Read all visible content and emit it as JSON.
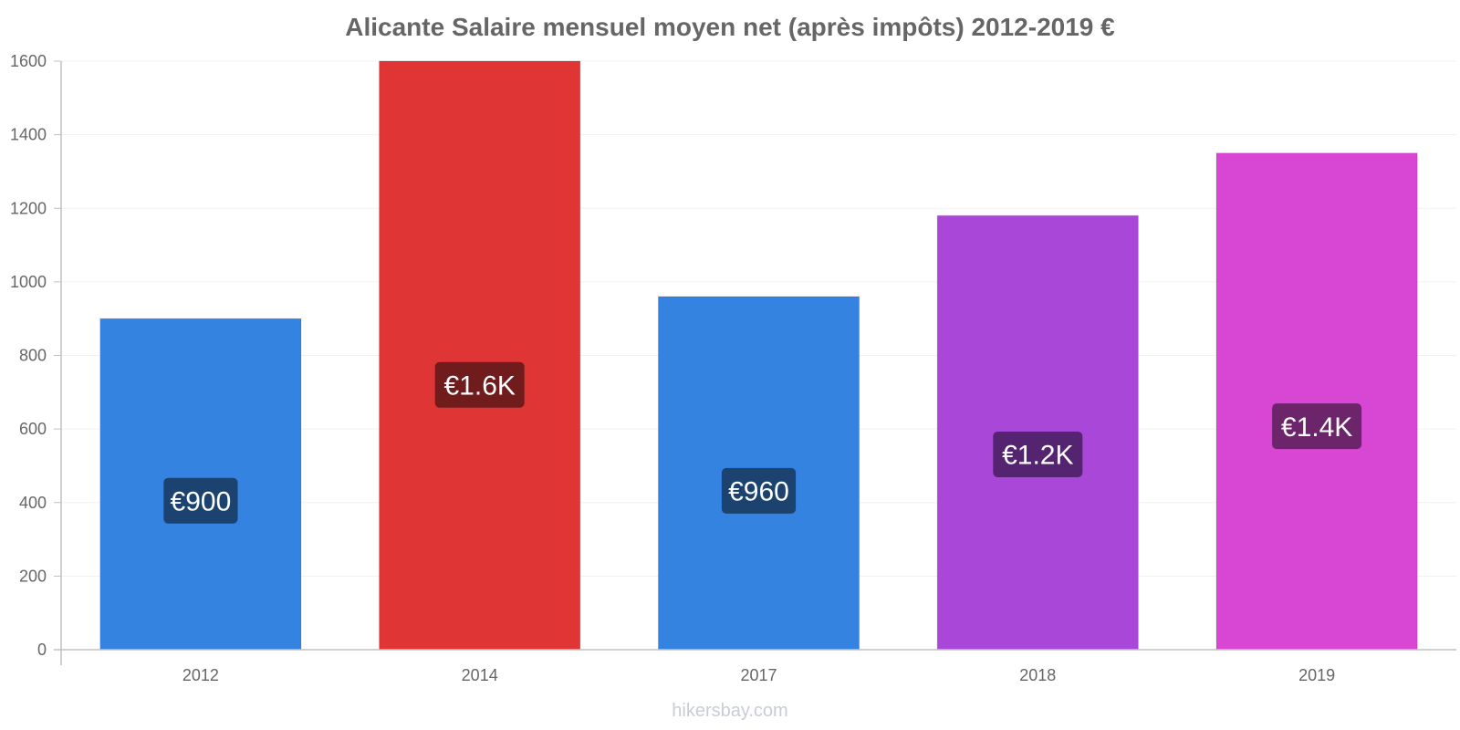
{
  "chart_data": {
    "type": "bar",
    "title": "Alicante Salaire mensuel moyen net (après impôts) 2012-2019 €",
    "xlabel": "",
    "ylabel": "",
    "categories": [
      "2012",
      "2014",
      "2017",
      "2018",
      "2019"
    ],
    "values": [
      900,
      1600,
      960,
      1180,
      1350
    ],
    "data_labels": [
      "€900",
      "€1.6K",
      "€960",
      "€1.2K",
      "€1.4K"
    ],
    "bar_colors": [
      "#3583e0",
      "#e03535",
      "#3583e0",
      "#a947d8",
      "#d747d3"
    ],
    "label_colors": [
      "#1c4370",
      "#701c1c",
      "#1c4370",
      "#552470",
      "#6c246a"
    ],
    "ylim": [
      0,
      1600
    ],
    "yticks": [
      0,
      200,
      400,
      600,
      800,
      1000,
      1200,
      1400,
      1600
    ],
    "grid": true,
    "legend": "none"
  },
  "watermark": "hikersbay.com"
}
